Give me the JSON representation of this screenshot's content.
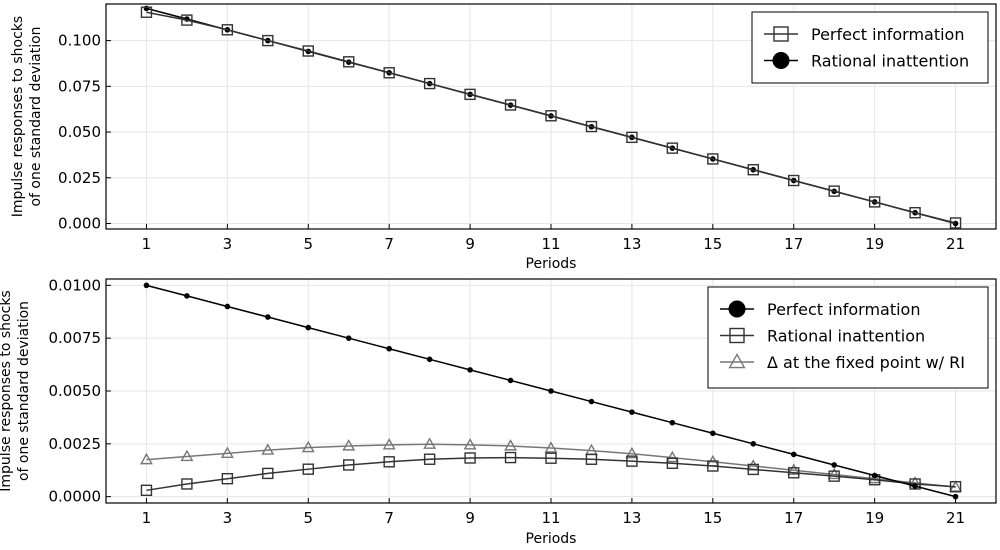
{
  "chart_data": [
    {
      "type": "line",
      "xlabel": "Periods",
      "ylabel_lines": [
        "Impulse responses to shocks",
        "of one standard deviation"
      ],
      "xlim": [
        0,
        22
      ],
      "ylim": [
        -0.003,
        0.12
      ],
      "xticks": [
        1,
        3,
        5,
        7,
        9,
        11,
        13,
        15,
        17,
        19,
        21
      ],
      "yticks": [
        0.0,
        0.025,
        0.05,
        0.075,
        0.1
      ],
      "ytick_labels": [
        "0.000",
        "0.025",
        "0.050",
        "0.075",
        "0.100"
      ],
      "grid": true,
      "legend": "top-right",
      "x": [
        1,
        2,
        3,
        4,
        5,
        6,
        7,
        8,
        9,
        10,
        11,
        12,
        13,
        14,
        15,
        16,
        17,
        18,
        19,
        20,
        21
      ],
      "series": [
        {
          "name": "Perfect information",
          "marker": "square",
          "color": "#333333",
          "values": [
            0.1155,
            0.1112,
            0.1059,
            0.1,
            0.0943,
            0.0884,
            0.0824,
            0.0765,
            0.0706,
            0.0648,
            0.0589,
            0.053,
            0.0471,
            0.0412,
            0.0353,
            0.0294,
            0.0235,
            0.0177,
            0.0118,
            0.0059,
            0.0003
          ]
        },
        {
          "name": "Rational inattention",
          "marker": "circle",
          "color": "#000000",
          "values": [
            0.1176,
            0.1118,
            0.1059,
            0.1,
            0.0941,
            0.0882,
            0.0824,
            0.0765,
            0.0706,
            0.0647,
            0.0588,
            0.0529,
            0.0471,
            0.0412,
            0.0353,
            0.0294,
            0.0235,
            0.0176,
            0.0118,
            0.0059,
            0.0
          ]
        }
      ]
    },
    {
      "type": "line",
      "xlabel": "Periods",
      "ylabel_lines": [
        "Impulse responses to shocks",
        "of one standard deviation"
      ],
      "xlim": [
        0,
        22
      ],
      "ylim": [
        -0.0003,
        0.0103
      ],
      "xticks": [
        1,
        3,
        5,
        7,
        9,
        11,
        13,
        15,
        17,
        19,
        21
      ],
      "yticks": [
        0.0,
        0.0025,
        0.005,
        0.0075,
        0.01
      ],
      "ytick_labels": [
        "0.0000",
        "0.0025",
        "0.0050",
        "0.0075",
        "0.0100"
      ],
      "grid": true,
      "legend": "top-right",
      "x": [
        1,
        2,
        3,
        4,
        5,
        6,
        7,
        8,
        9,
        10,
        11,
        12,
        13,
        14,
        15,
        16,
        17,
        18,
        19,
        20,
        21
      ],
      "series": [
        {
          "name": "Perfect information",
          "marker": "circle",
          "color": "#000000",
          "values": [
            0.01,
            0.0095,
            0.009,
            0.0085,
            0.008,
            0.0075,
            0.007,
            0.0065,
            0.006,
            0.0055,
            0.005,
            0.0045,
            0.004,
            0.0035,
            0.003,
            0.0025,
            0.002,
            0.0015,
            0.001,
            0.0005,
            0.0
          ]
        },
        {
          "name": "Rational inattention",
          "marker": "square",
          "color": "#333333",
          "values": [
            0.0003,
            0.0006,
            0.00085,
            0.0011,
            0.0013,
            0.0015,
            0.00165,
            0.00177,
            0.00183,
            0.00185,
            0.00182,
            0.00177,
            0.00168,
            0.00158,
            0.00145,
            0.00129,
            0.00113,
            0.00097,
            0.0008,
            0.0006,
            0.00047
          ]
        },
        {
          "name": "Δ at the fixed point w/ RI",
          "marker": "triangle",
          "color": "#777777",
          "values": [
            0.00175,
            0.0019,
            0.00205,
            0.0022,
            0.00232,
            0.0024,
            0.00245,
            0.00248,
            0.00245,
            0.0024,
            0.0023,
            0.00218,
            0.00203,
            0.00185,
            0.00165,
            0.00145,
            0.00125,
            0.00105,
            0.00085,
            0.00065,
            0.00045
          ]
        }
      ]
    }
  ]
}
